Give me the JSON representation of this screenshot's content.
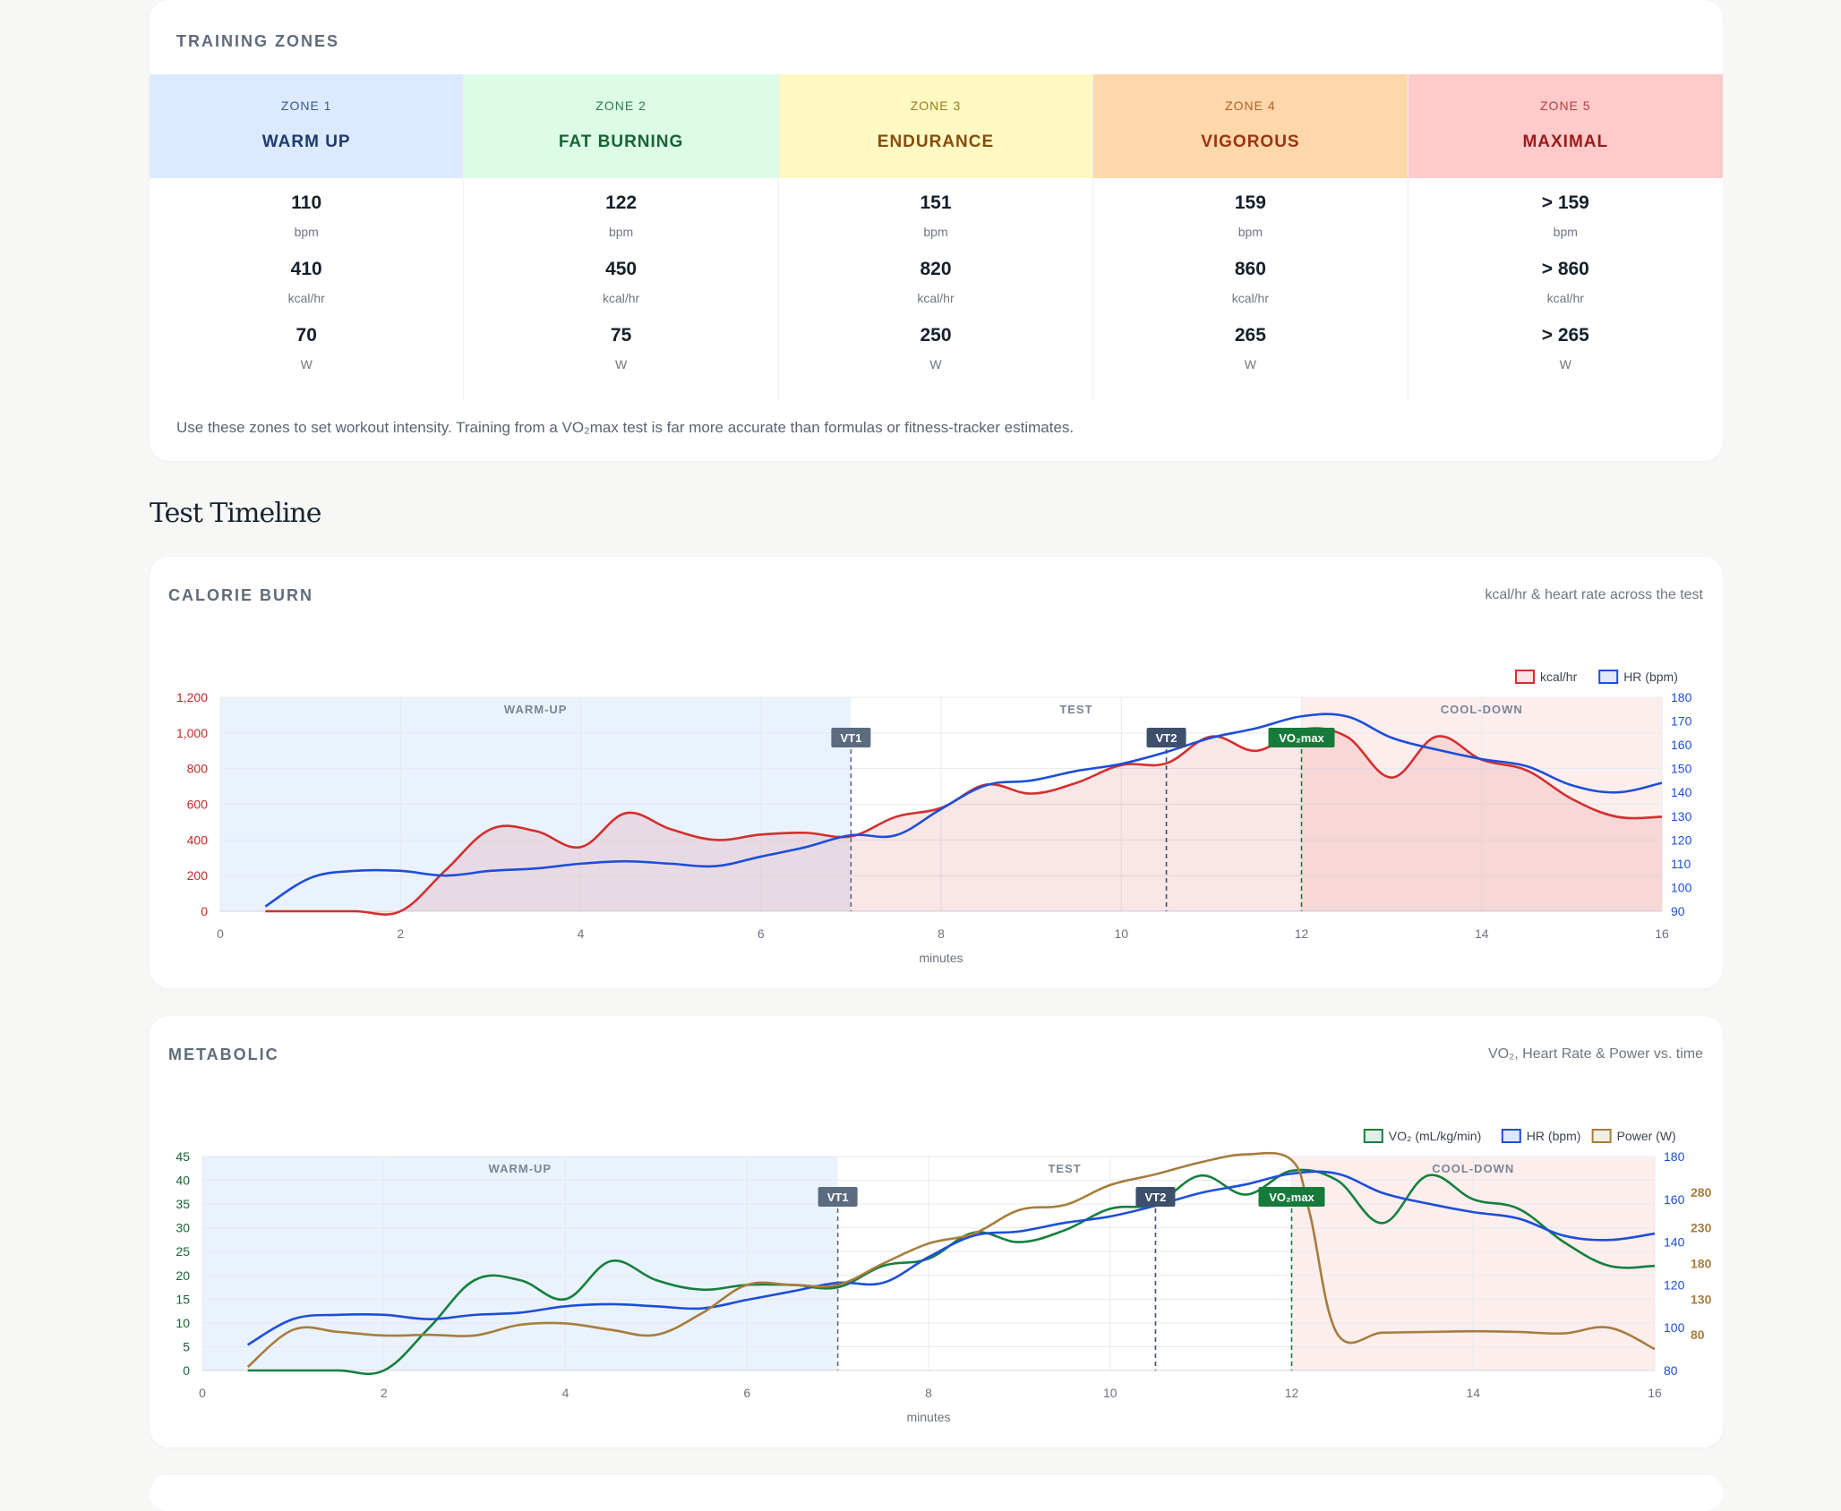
{
  "training_zones": {
    "title": "TRAINING ZONES",
    "zones": [
      {
        "number": "ZONE 1",
        "name": "WARM UP",
        "bpm": "110",
        "bpm_unit": "bpm",
        "kcal": "410",
        "kcal_unit": "kcal/hr",
        "watts": "70",
        "watts_unit": "W",
        "bg": "#dbeafe",
        "num_color": "#3b5b8a",
        "name_color": "#1e3a6e"
      },
      {
        "number": "ZONE 2",
        "name": "FAT BURNING",
        "bpm": "122",
        "bpm_unit": "bpm",
        "kcal": "450",
        "kcal_unit": "kcal/hr",
        "watts": "75",
        "watts_unit": "W",
        "bg": "#dcfce7",
        "num_color": "#2f7a4f",
        "name_color": "#166534"
      },
      {
        "number": "ZONE 3",
        "name": "ENDURANCE",
        "bpm": "151",
        "bpm_unit": "bpm",
        "kcal": "820",
        "kcal_unit": "kcal/hr",
        "watts": "250",
        "watts_unit": "W",
        "bg": "#fef9c3",
        "num_color": "#9a7a1a",
        "name_color": "#854d0e"
      },
      {
        "number": "ZONE 4",
        "name": "VIGOROUS",
        "bpm": "159",
        "bpm_unit": "bpm",
        "kcal": "860",
        "kcal_unit": "kcal/hr",
        "watts": "265",
        "watts_unit": "W",
        "bg": "#fed7aa",
        "num_color": "#b45f2a",
        "name_color": "#9a3412"
      },
      {
        "number": "ZONE 5",
        "name": "MAXIMAL",
        "bpm": "> 159",
        "bpm_unit": "bpm",
        "kcal": "> 860",
        "kcal_unit": "kcal/hr",
        "watts": "> 265",
        "watts_unit": "W",
        "bg": "#fecaca",
        "num_color": "#b04040",
        "name_color": "#991b1b"
      }
    ],
    "note": "Use these zones to set workout intensity. Training from a VO₂max test is far more accurate than formulas or fitness-tracker estimates."
  },
  "timeline": {
    "title": "Test Timeline"
  },
  "calorie_chart": {
    "title": "CALORIE BURN",
    "subtitle": "kcal/hr & heart rate across the test"
  },
  "metabolic_chart": {
    "title": "METABOLIC",
    "subtitle": "VO₂, Heart Rate & Power vs. time"
  },
  "chart_data": [
    {
      "type": "line",
      "title": "CALORIE BURN",
      "xlabel": "minutes",
      "xlim": [
        0,
        16
      ],
      "x_ticks": [
        0,
        2,
        4,
        6,
        8,
        10,
        12,
        14,
        16
      ],
      "phases": [
        {
          "label": "WARM-UP",
          "start": 0,
          "end": 7,
          "color": "#eaf2fd"
        },
        {
          "label": "TEST",
          "start": 7,
          "end": 12,
          "color": "#ffffff"
        },
        {
          "label": "COOL-DOWN",
          "start": 12,
          "end": 16,
          "color": "#fdeeee"
        }
      ],
      "markers": [
        {
          "label": "VT1",
          "x": 7,
          "color": "#5b6b80"
        },
        {
          "label": "VT2",
          "x": 10.5,
          "color": "#3d4f6a"
        },
        {
          "label": "VO₂max",
          "x": 12,
          "color": "#167a3a"
        }
      ],
      "axes": [
        {
          "id": "y1",
          "side": "left",
          "min": 0,
          "max": 1200,
          "ticks": [
            0,
            200,
            400,
            600,
            800,
            1000,
            1200
          ],
          "tick_labels": [
            "0",
            "200",
            "400",
            "600",
            "800",
            "1,000",
            "1,200"
          ],
          "color": "#c62828"
        },
        {
          "id": "y2",
          "side": "right",
          "min": 90,
          "max": 180,
          "ticks": [
            90,
            100,
            110,
            120,
            130,
            140,
            150,
            160,
            170,
            180
          ],
          "tick_labels": [
            "90",
            "100",
            "110",
            "120",
            "130",
            "140",
            "150",
            "160",
            "170",
            "180"
          ],
          "color": "#1d4ed8"
        }
      ],
      "series": [
        {
          "name": "kcal/hr",
          "axis": "y1",
          "color": "#d32f2f",
          "fill": "rgba(211,47,47,0.12)",
          "x": [
            0.5,
            1,
            1.5,
            2,
            2.5,
            3,
            3.5,
            4,
            4.5,
            5,
            5.5,
            6,
            6.5,
            7,
            7.5,
            8,
            8.5,
            9,
            9.5,
            10,
            10.5,
            11,
            11.5,
            12,
            12.5,
            13,
            13.5,
            14,
            14.5,
            15,
            15.5,
            16
          ],
          "values": [
            0,
            0,
            0,
            0,
            230,
            460,
            450,
            360,
            550,
            460,
            400,
            430,
            440,
            420,
            530,
            580,
            710,
            660,
            720,
            820,
            830,
            980,
            900,
            1020,
            980,
            750,
            980,
            850,
            790,
            630,
            530,
            530
          ]
        },
        {
          "name": "HR (bpm)",
          "axis": "y2",
          "color": "#1d4ed8",
          "fill": null,
          "x": [
            0.5,
            1,
            1.5,
            2,
            2.5,
            3,
            3.5,
            4,
            4.5,
            5,
            5.5,
            6,
            6.5,
            7,
            7.5,
            8,
            8.5,
            9,
            9.5,
            10,
            10.5,
            11,
            11.5,
            12,
            12.5,
            13,
            13.5,
            14,
            14.5,
            15,
            15.5,
            16
          ],
          "values": [
            92,
            104,
            107,
            107,
            105,
            107,
            108,
            110,
            111,
            110,
            109,
            113,
            117,
            122,
            122,
            133,
            143,
            145,
            149,
            152,
            157,
            163,
            167,
            172,
            172,
            163,
            158,
            154,
            151,
            143,
            140,
            144
          ]
        }
      ]
    },
    {
      "type": "line",
      "title": "METABOLIC",
      "xlabel": "minutes",
      "xlim": [
        0,
        16
      ],
      "x_ticks": [
        0,
        2,
        4,
        6,
        8,
        10,
        12,
        14,
        16
      ],
      "phases": [
        {
          "label": "WARM-UP",
          "start": 0,
          "end": 7,
          "color": "#eaf2fd"
        },
        {
          "label": "TEST",
          "start": 7,
          "end": 12,
          "color": "#ffffff"
        },
        {
          "label": "COOL-DOWN",
          "start": 12,
          "end": 16,
          "color": "#fdeeee"
        }
      ],
      "markers": [
        {
          "label": "VT1",
          "x": 7,
          "color": "#5b6b80"
        },
        {
          "label": "VT2",
          "x": 10.5,
          "color": "#3d4f6a"
        },
        {
          "label": "VO₂max",
          "x": 12,
          "color": "#167a3a"
        }
      ],
      "axes": [
        {
          "id": "y1",
          "side": "left",
          "min": 0,
          "max": 45,
          "ticks": [
            0,
            5,
            10,
            15,
            20,
            25,
            30,
            35,
            40,
            45
          ],
          "tick_labels": [
            "0",
            "5",
            "10",
            "15",
            "20",
            "25",
            "30",
            "35",
            "40",
            "45"
          ],
          "color": "#166534"
        },
        {
          "id": "y2",
          "side": "right",
          "min": 80,
          "max": 180,
          "ticks": [
            80,
            100,
            120,
            140,
            160,
            180
          ],
          "tick_labels": [
            "80",
            "100",
            "120",
            "140",
            "160",
            "180"
          ],
          "color": "#1d4ed8"
        },
        {
          "id": "y3",
          "side": "right",
          "min": 30,
          "max": 330,
          "ticks": [
            80,
            130,
            180,
            230,
            280
          ],
          "tick_labels": [
            "80",
            "130",
            "180",
            "230",
            "280"
          ],
          "color": "#a77d3c"
        }
      ],
      "series": [
        {
          "name": "VO₂ (mL/kg/min)",
          "axis": "y1",
          "color": "#15803d",
          "x": [
            0.5,
            1,
            1.5,
            2,
            2.5,
            3,
            3.5,
            4,
            4.5,
            5,
            5.5,
            6,
            6.5,
            7,
            7.5,
            8,
            8.5,
            9,
            9.5,
            10,
            10.5,
            11,
            11.5,
            12,
            12.5,
            13,
            13.5,
            14,
            14.5,
            15,
            15.5,
            16
          ],
          "values": [
            0,
            0,
            0,
            0,
            9,
            19,
            19,
            15,
            23,
            19,
            17,
            18,
            18,
            17.5,
            22,
            23.5,
            29,
            27,
            29.5,
            34,
            35,
            41,
            37,
            42,
            40,
            31,
            41,
            36,
            34,
            27,
            22,
            22
          ]
        },
        {
          "name": "HR (bpm)",
          "axis": "y2",
          "color": "#1d4ed8",
          "x": [
            0.5,
            1,
            1.5,
            2,
            2.5,
            3,
            3.5,
            4,
            4.5,
            5,
            5.5,
            6,
            6.5,
            7,
            7.5,
            8,
            8.5,
            9,
            9.5,
            10,
            10.5,
            11,
            11.5,
            12,
            12.5,
            13,
            13.5,
            14,
            14.5,
            15,
            15.5,
            16
          ],
          "values": [
            92,
            104,
            106,
            106,
            104,
            106,
            107,
            110,
            111,
            110,
            109,
            113,
            117,
            121,
            121,
            133,
            143,
            145,
            149,
            152,
            157,
            163,
            167,
            172,
            172,
            163,
            158,
            154,
            151,
            143,
            141,
            144
          ]
        },
        {
          "name": "Power (W)",
          "axis": "y3",
          "color": "#a77d3c",
          "x": [
            0.5,
            1,
            1.5,
            2,
            2.5,
            3,
            3.5,
            4,
            4.5,
            5,
            5.5,
            6,
            6.5,
            7,
            7.5,
            8,
            8.5,
            9,
            9.5,
            10,
            10.5,
            11,
            11.5,
            12,
            12.2,
            12.5,
            13,
            13.5,
            14,
            14.5,
            15,
            15.5,
            16
          ],
          "values": [
            35,
            87,
            84,
            79,
            80,
            79,
            94,
            96,
            87,
            80,
            110,
            150,
            150,
            150,
            180,
            208,
            222,
            255,
            262,
            290,
            305,
            322,
            333,
            325,
            250,
            82,
            83,
            84,
            85,
            84,
            82,
            90,
            60
          ]
        }
      ]
    }
  ]
}
